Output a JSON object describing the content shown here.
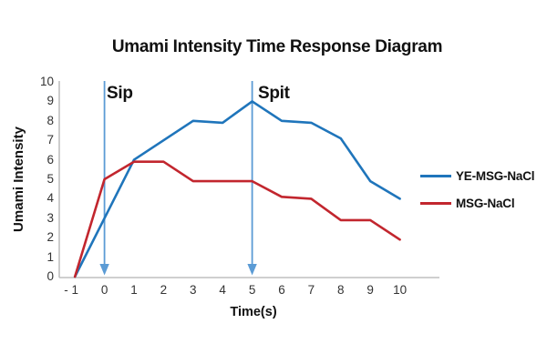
{
  "title": "Umami Intensity Time Response Diagram",
  "chart_data": {
    "type": "line",
    "title": "Umami Intensity Time Response Diagram",
    "x": [
      -1,
      0,
      1,
      2,
      3,
      4,
      5,
      6,
      7,
      8,
      9,
      10
    ],
    "x_tick_labels": [
      "- 1",
      "0",
      "1",
      "2",
      "3",
      "4",
      "5",
      "6",
      "7",
      "8",
      "9",
      "10"
    ],
    "y_ticks": [
      0,
      1,
      2,
      3,
      4,
      5,
      6,
      7,
      8,
      9,
      10
    ],
    "ylim": [
      0,
      10
    ],
    "xlabel": "Time(s)",
    "ylabel": "Umami Intensity",
    "grid": false,
    "legend_position": "right",
    "series": [
      {
        "name": "YE-MSG-NaCl",
        "color": "#1F75BB",
        "values": [
          0,
          3,
          6,
          7,
          8,
          7.9,
          9,
          8,
          7.9,
          7.1,
          4.9,
          4
        ]
      },
      {
        "name": "MSG-NaCl",
        "color": "#C2262E",
        "values": [
          0,
          5,
          5.9,
          5.9,
          4.9,
          4.9,
          4.9,
          4.1,
          4,
          2.9,
          2.9,
          1.9
        ]
      }
    ],
    "annotations": [
      {
        "label": "Sip",
        "x": 0
      },
      {
        "label": "Spit",
        "x": 5
      }
    ],
    "annotation_color": "#5B9BD5",
    "axis_color": "#BFBFBF"
  }
}
